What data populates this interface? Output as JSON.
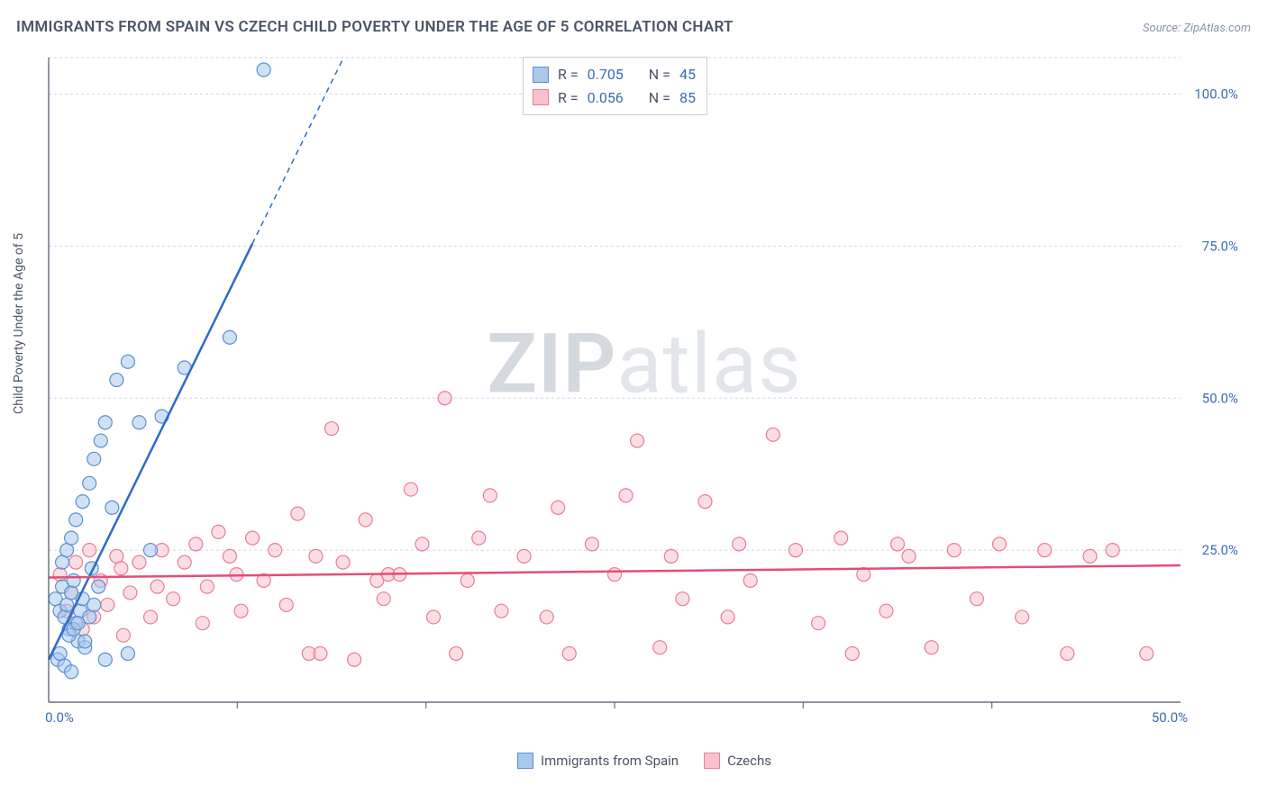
{
  "title": "IMMIGRANTS FROM SPAIN VS CZECH CHILD POVERTY UNDER THE AGE OF 5 CORRELATION CHART",
  "source_prefix": "Source: ",
  "source_name": "ZipAtlas.com",
  "ylabel": "Child Poverty Under the Age of 5",
  "watermark": {
    "bold": "ZIP",
    "rest": "atlas"
  },
  "chart": {
    "type": "scatter",
    "xlim": [
      0,
      50
    ],
    "ylim": [
      0,
      106
    ],
    "xtick_labels": [
      "0.0%",
      "50.0%"
    ],
    "xtick_pos": [
      0,
      50
    ],
    "xtick_minor": [
      8.33,
      16.67,
      25,
      33.33,
      41.67
    ],
    "ytick_labels": [
      "25.0%",
      "50.0%",
      "75.0%",
      "100.0%"
    ],
    "ytick_pos": [
      25,
      50,
      75,
      100
    ],
    "grid_color": "#d0d6dd",
    "background_color": "#ffffff",
    "point_radius": 7.5,
    "series": [
      {
        "name": "Immigrants from Spain",
        "color_fill": "#a8c8ec",
        "color_stroke": "#5b8fd0",
        "r_value": "0.705",
        "n_value": "45",
        "trend": {
          "slope": 7.6,
          "intercept": 7,
          "solid_until_x": 9,
          "dash_until_x": 13
        },
        "points": [
          [
            0.3,
            17
          ],
          [
            0.5,
            15
          ],
          [
            0.6,
            19
          ],
          [
            0.7,
            14
          ],
          [
            0.8,
            16
          ],
          [
            0.9,
            12
          ],
          [
            1.0,
            18
          ],
          [
            1.1,
            20
          ],
          [
            1.2,
            13
          ],
          [
            1.3,
            10
          ],
          [
            1.4,
            15
          ],
          [
            1.5,
            17
          ],
          [
            1.6,
            9
          ],
          [
            1.8,
            14
          ],
          [
            2.0,
            16
          ],
          [
            2.2,
            19
          ],
          [
            0.6,
            23
          ],
          [
            0.8,
            25
          ],
          [
            1.0,
            27
          ],
          [
            1.2,
            30
          ],
          [
            1.5,
            33
          ],
          [
            1.8,
            36
          ],
          [
            2.0,
            40
          ],
          [
            2.3,
            43
          ],
          [
            2.5,
            46
          ],
          [
            3.0,
            53
          ],
          [
            3.5,
            56
          ],
          [
            4.0,
            46
          ],
          [
            5.0,
            47
          ],
          [
            6.0,
            55
          ],
          [
            8.0,
            60
          ],
          [
            9.5,
            104
          ],
          [
            0.4,
            7
          ],
          [
            0.5,
            8
          ],
          [
            0.7,
            6
          ],
          [
            1.0,
            5
          ],
          [
            2.5,
            7
          ],
          [
            3.5,
            8
          ],
          [
            4.5,
            25
          ],
          [
            0.9,
            11
          ],
          [
            1.1,
            12
          ],
          [
            1.3,
            13
          ],
          [
            1.6,
            10
          ],
          [
            2.8,
            32
          ],
          [
            1.9,
            22
          ]
        ]
      },
      {
        "name": "Czechs",
        "color_fill": "#f8c2cd",
        "color_stroke": "#e97c96",
        "r_value": "0.056",
        "n_value": "85",
        "trend": {
          "slope": 0.04,
          "intercept": 20.5,
          "solid_until_x": 50,
          "dash_until_x": 50
        },
        "points": [
          [
            0.5,
            21
          ],
          [
            0.8,
            15
          ],
          [
            1.0,
            18
          ],
          [
            1.2,
            23
          ],
          [
            1.5,
            12
          ],
          [
            1.8,
            25
          ],
          [
            2.0,
            14
          ],
          [
            2.3,
            20
          ],
          [
            2.6,
            16
          ],
          [
            3.0,
            24
          ],
          [
            3.3,
            11
          ],
          [
            3.6,
            18
          ],
          [
            4.0,
            23
          ],
          [
            4.5,
            14
          ],
          [
            5.0,
            25
          ],
          [
            5.5,
            17
          ],
          [
            6.0,
            23
          ],
          [
            6.5,
            26
          ],
          [
            7.0,
            19
          ],
          [
            7.5,
            28
          ],
          [
            8.0,
            24
          ],
          [
            8.5,
            15
          ],
          [
            9.0,
            27
          ],
          [
            9.5,
            20
          ],
          [
            10.0,
            25
          ],
          [
            10.5,
            16
          ],
          [
            11.0,
            31
          ],
          [
            11.5,
            8
          ],
          [
            12.0,
            8
          ],
          [
            12.5,
            45
          ],
          [
            13.0,
            23
          ],
          [
            13.5,
            7
          ],
          [
            14.0,
            30
          ],
          [
            14.5,
            20
          ],
          [
            15.0,
            21
          ],
          [
            15.5,
            21
          ],
          [
            16.0,
            35
          ],
          [
            16.5,
            26
          ],
          [
            17.0,
            14
          ],
          [
            17.5,
            50
          ],
          [
            18.0,
            8
          ],
          [
            18.5,
            20
          ],
          [
            19.0,
            27
          ],
          [
            19.5,
            34
          ],
          [
            20.0,
            15
          ],
          [
            21.0,
            24
          ],
          [
            22.0,
            14
          ],
          [
            22.5,
            32
          ],
          [
            23.0,
            8
          ],
          [
            24.0,
            26
          ],
          [
            25.0,
            21
          ],
          [
            25.5,
            34
          ],
          [
            26.0,
            43
          ],
          [
            27.0,
            9
          ],
          [
            27.5,
            24
          ],
          [
            28.0,
            17
          ],
          [
            29.0,
            33
          ],
          [
            30.0,
            14
          ],
          [
            30.5,
            26
          ],
          [
            31.0,
            20
          ],
          [
            32.0,
            44
          ],
          [
            33.0,
            25
          ],
          [
            34.0,
            13
          ],
          [
            35.0,
            27
          ],
          [
            35.5,
            8
          ],
          [
            36.0,
            21
          ],
          [
            37.0,
            15
          ],
          [
            37.5,
            26
          ],
          [
            38.0,
            24
          ],
          [
            39.0,
            9
          ],
          [
            40.0,
            25
          ],
          [
            41.0,
            17
          ],
          [
            42.0,
            26
          ],
          [
            43.0,
            14
          ],
          [
            44.0,
            25
          ],
          [
            45.0,
            8
          ],
          [
            46.0,
            24
          ],
          [
            47.0,
            25
          ],
          [
            48.5,
            8
          ],
          [
            3.2,
            22
          ],
          [
            4.8,
            19
          ],
          [
            6.8,
            13
          ],
          [
            8.3,
            21
          ],
          [
            11.8,
            24
          ],
          [
            14.8,
            17
          ]
        ]
      }
    ],
    "stats_labels": {
      "r": "R =",
      "n": "N ="
    },
    "legend_bottom": [
      {
        "swatch": "blue",
        "label": "Immigrants from Spain"
      },
      {
        "swatch": "pink",
        "label": "Czechs"
      }
    ]
  }
}
